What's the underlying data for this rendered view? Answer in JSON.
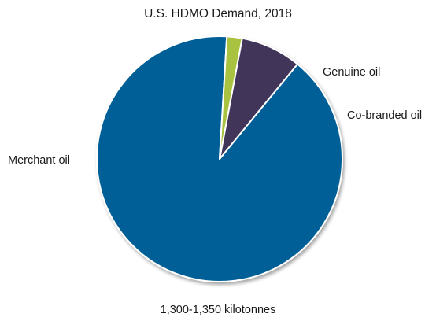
{
  "chart_data": {
    "type": "pie",
    "title": "U.S. HDMO Demand, 2018",
    "subtitle": "1,300-1,350 kilotonnes",
    "slices": [
      {
        "label": "Merchant oil",
        "value": 90.0,
        "color": "#005f96"
      },
      {
        "label": "Genuine oil",
        "value": 8.0,
        "color": "#43345a"
      },
      {
        "label": "Co-branded oil",
        "value": 2.0,
        "color": "#a9c23f"
      }
    ],
    "legend": "none",
    "labels_placement": "outside"
  }
}
